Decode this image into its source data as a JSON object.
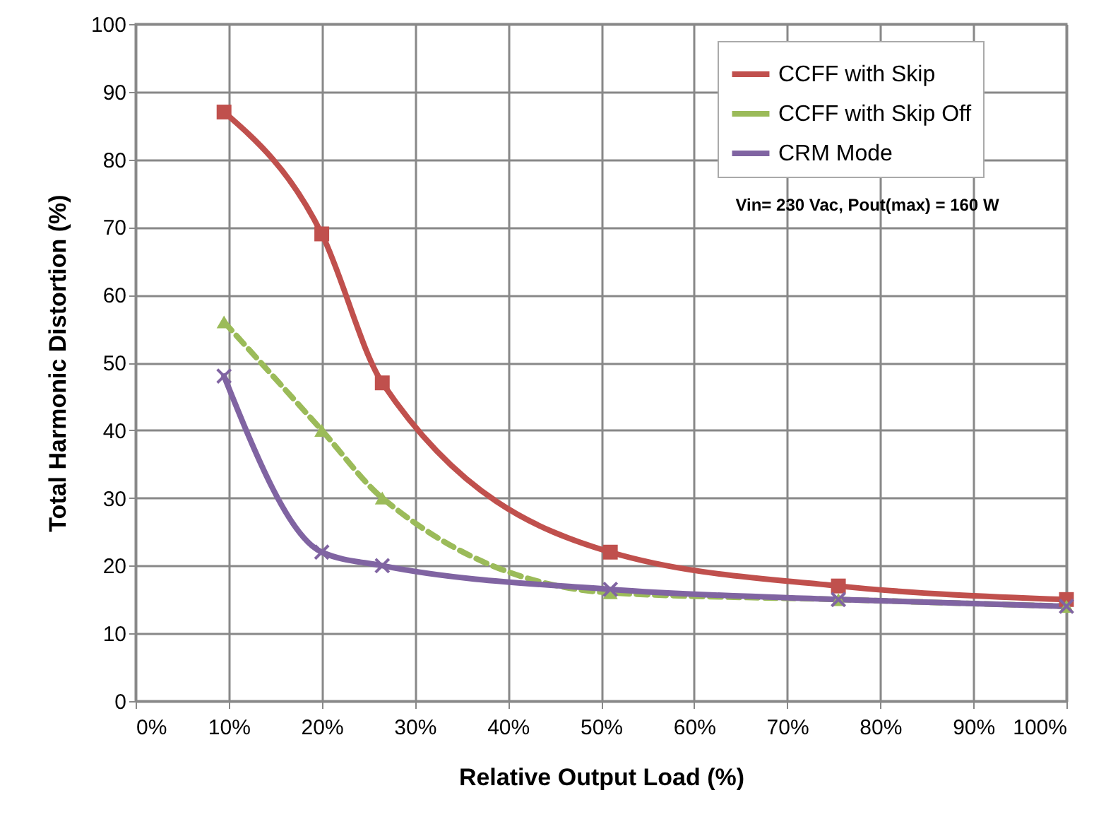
{
  "chart_data": {
    "type": "line",
    "xlabel": "Relative Output Load (%)",
    "ylabel": "Total Harmonic Distortion (%)",
    "xlim": [
      0,
      100
    ],
    "ylim": [
      0,
      100
    ],
    "xticks": [
      {
        "value": 0,
        "label": "0%"
      },
      {
        "value": 10,
        "label": "10%"
      },
      {
        "value": 20,
        "label": "20%"
      },
      {
        "value": 30,
        "label": "30%"
      },
      {
        "value": 40,
        "label": "40%"
      },
      {
        "value": 50,
        "label": "50%"
      },
      {
        "value": 60,
        "label": "60%"
      },
      {
        "value": 70,
        "label": "70%"
      },
      {
        "value": 80,
        "label": "80%"
      },
      {
        "value": 90,
        "label": "90%"
      },
      {
        "value": 100,
        "label": "100%"
      }
    ],
    "yticks": [
      0,
      10,
      20,
      30,
      40,
      50,
      60,
      70,
      80,
      90,
      100
    ],
    "grid": true,
    "legend": "top right",
    "annotations": [
      "Vin= 230 Vac, Pout(max) = 160 W"
    ],
    "series": [
      {
        "name": "CCFF with Skip",
        "color": "#c0504d",
        "marker": "square",
        "line_style": "solid",
        "x": [
          9.5,
          20,
          26.5,
          51,
          75.5,
          100
        ],
        "values": [
          87,
          69,
          47,
          22,
          17,
          15
        ]
      },
      {
        "name": "CCFF with Skip Off",
        "color": "#9bbb59",
        "marker": "triangle",
        "line_style": "dashed",
        "x": [
          9.5,
          20,
          26.5,
          51,
          75.5,
          100
        ],
        "values": [
          56,
          40,
          30,
          16,
          15,
          14
        ]
      },
      {
        "name": "CRM Mode",
        "color": "#8064a2",
        "marker": "cross",
        "line_style": "solid",
        "x": [
          9.5,
          20,
          26.5,
          51,
          75.5,
          100
        ],
        "values": [
          48,
          22,
          20,
          16.5,
          15,
          14
        ]
      }
    ]
  }
}
